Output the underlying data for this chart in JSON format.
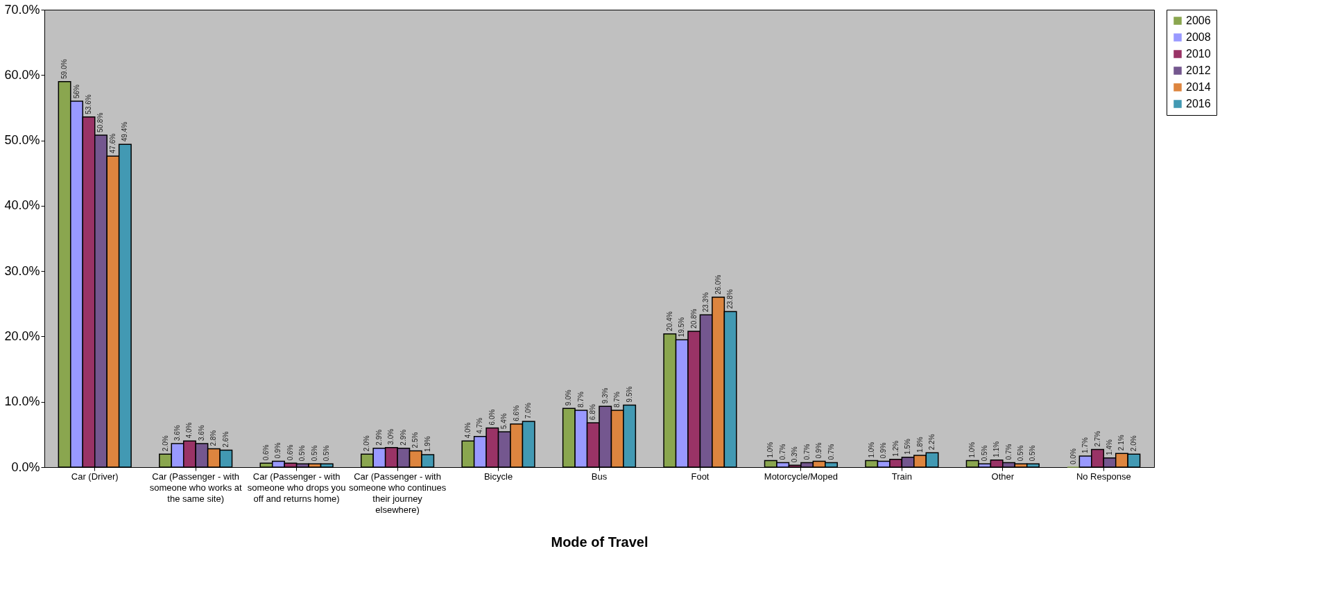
{
  "chart_data": {
    "type": "bar",
    "xlabel": "Mode of Travel",
    "categories": [
      "Car (Driver)",
      "Car (Passenger - with someone who works at the same site)",
      "Car (Passenger - with someone who drops you off and returns home)",
      "Car (Passenger - with someone who continues their journey elsewhere)",
      "Bicycle",
      "Bus",
      "Foot",
      "Motorcycle/Moped",
      "Train",
      "Other",
      "No Response"
    ],
    "series": [
      {
        "name": "2006",
        "color": "#8aa64f",
        "values": [
          59.0,
          2.0,
          0.6,
          2.0,
          4.0,
          9.0,
          20.4,
          1.0,
          1.0,
          1.0,
          0.0
        ],
        "value_labels": [
          "59.0%",
          "2.0%",
          "0.6%",
          "2.0%",
          "4.0%",
          "9.0%",
          "20.4%",
          "1.0%",
          "1.0%",
          "1.0%",
          "0.0%"
        ]
      },
      {
        "name": "2008",
        "color": "#9999ff",
        "values": [
          56,
          3.6,
          0.9,
          2.9,
          4.7,
          8.7,
          19.5,
          0.7,
          0.9,
          0.5,
          1.7
        ],
        "value_labels": [
          "56%",
          "3.6%",
          "0.9%",
          "2.9%",
          "4.7%",
          "8.7%",
          "19.5%",
          "0.7%",
          "0.9%",
          "0.5%",
          "1.7%"
        ]
      },
      {
        "name": "2010",
        "color": "#993366",
        "values": [
          53.6,
          4.0,
          0.6,
          3.0,
          6.0,
          6.8,
          20.8,
          0.3,
          1.2,
          1.1,
          2.7
        ],
        "value_labels": [
          "53.6%",
          "4.0%",
          "0.6%",
          "3.0%",
          "6.0%",
          "6.8%",
          "20.8%",
          "0.3%",
          "1.2%",
          "1.1%",
          "2.7%"
        ]
      },
      {
        "name": "2012",
        "color": "#74578f",
        "values": [
          50.8,
          3.6,
          0.5,
          2.9,
          5.4,
          9.3,
          23.3,
          0.7,
          1.5,
          0.7,
          1.4
        ],
        "value_labels": [
          "50.8%",
          "3.6%",
          "0.5%",
          "2.9%",
          "5.4%",
          "9.3%",
          "23.3%",
          "0.7%",
          "1.5%",
          "0.7%",
          "1.4%"
        ]
      },
      {
        "name": "2014",
        "color": "#dd853f",
        "values": [
          47.6,
          2.8,
          0.5,
          2.5,
          6.6,
          8.7,
          26.0,
          0.9,
          1.8,
          0.5,
          2.1
        ],
        "value_labels": [
          "47.6%",
          "2.8%",
          "0.5%",
          "2.5%",
          "6.6%",
          "8.7%",
          "26.0%",
          "0.9%",
          "1.8%",
          "0.5%",
          "2.1%"
        ]
      },
      {
        "name": "2016",
        "color": "#4299b3",
        "values": [
          49.4,
          2.6,
          0.5,
          1.9,
          7.0,
          9.5,
          23.8,
          0.7,
          2.2,
          0.5,
          2.0
        ],
        "value_labels": [
          "49.4%",
          "2.6%",
          "0.5%",
          "1.9%",
          "7.0%",
          "9.5%",
          "23.8%",
          "0.7%",
          "2.2%",
          "0.5%",
          "2.0%"
        ]
      }
    ],
    "ylim": [
      0,
      70
    ],
    "yticks": [
      {
        "value": 0,
        "label": "0.0%"
      },
      {
        "value": 10,
        "label": "10.0%"
      },
      {
        "value": 20,
        "label": "20.0%"
      },
      {
        "value": 30,
        "label": "30.0%"
      },
      {
        "value": 40,
        "label": "40.0%"
      },
      {
        "value": 50,
        "label": "50.0%"
      },
      {
        "value": 60,
        "label": "60.0%"
      },
      {
        "value": 70,
        "label": "70.0%"
      }
    ],
    "grid": false,
    "legend": "right"
  }
}
